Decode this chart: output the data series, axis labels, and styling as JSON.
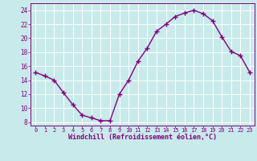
{
  "x": [
    0,
    1,
    2,
    3,
    4,
    5,
    6,
    7,
    8,
    9,
    10,
    11,
    12,
    13,
    14,
    15,
    16,
    17,
    18,
    19,
    20,
    21,
    22,
    23
  ],
  "y": [
    15.1,
    14.6,
    14.0,
    12.2,
    10.5,
    9.0,
    8.6,
    8.2,
    8.2,
    12.0,
    14.0,
    16.7,
    18.6,
    21.0,
    22.0,
    23.1,
    23.6,
    24.0,
    23.5,
    22.5,
    20.2,
    18.1,
    17.5,
    15.1
  ],
  "line_color": "#800080",
  "marker": "+",
  "bg_color": "#c8eaea",
  "grid_color": "#b0d8d8",
  "xlabel": "Windchill (Refroidissement éolien,°C)",
  "xlim": [
    -0.5,
    23.5
  ],
  "ylim": [
    7.5,
    25.0
  ],
  "yticks": [
    8,
    10,
    12,
    14,
    16,
    18,
    20,
    22,
    24
  ],
  "xticks": [
    0,
    1,
    2,
    3,
    4,
    5,
    6,
    7,
    8,
    9,
    10,
    11,
    12,
    13,
    14,
    15,
    16,
    17,
    18,
    19,
    20,
    21,
    22,
    23
  ],
  "tick_color": "#800080",
  "label_color": "#800080",
  "linewidth": 1.0,
  "markersize": 4,
  "markeredgewidth": 1.0
}
